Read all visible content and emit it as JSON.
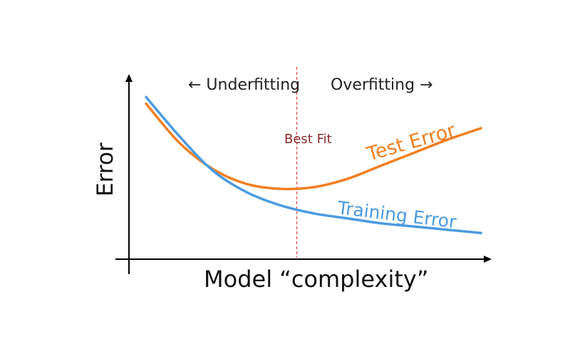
{
  "chart_data": {
    "type": "line",
    "title": "",
    "xlabel": "Model “complexity”",
    "ylabel": "Error",
    "xlim": [
      0,
      100
    ],
    "ylim": [
      0,
      100
    ],
    "grid": false,
    "series": [
      {
        "name": "Test Error",
        "color": "#f07f22",
        "x": [
          0,
          10,
          20,
          30,
          40,
          50,
          60,
          70,
          80,
          90,
          100
        ],
        "y": [
          88,
          64,
          48,
          39,
          36,
          37,
          42,
          50,
          58,
          66,
          73
        ]
      },
      {
        "name": "Training Error",
        "color": "#4b9be0",
        "x": [
          0,
          10,
          20,
          30,
          40,
          50,
          60,
          70,
          80,
          90,
          100
        ],
        "y": [
          92,
          68,
          47,
          34,
          26,
          21,
          18,
          15,
          13,
          11,
          9
        ]
      }
    ],
    "annotations": {
      "best_fit": {
        "label": "Best Fit",
        "x": 45,
        "color": "#8a2a2a",
        "line_color": "#e06060"
      },
      "left_region": "← Underfitting",
      "right_region": "Overfitting →"
    }
  }
}
